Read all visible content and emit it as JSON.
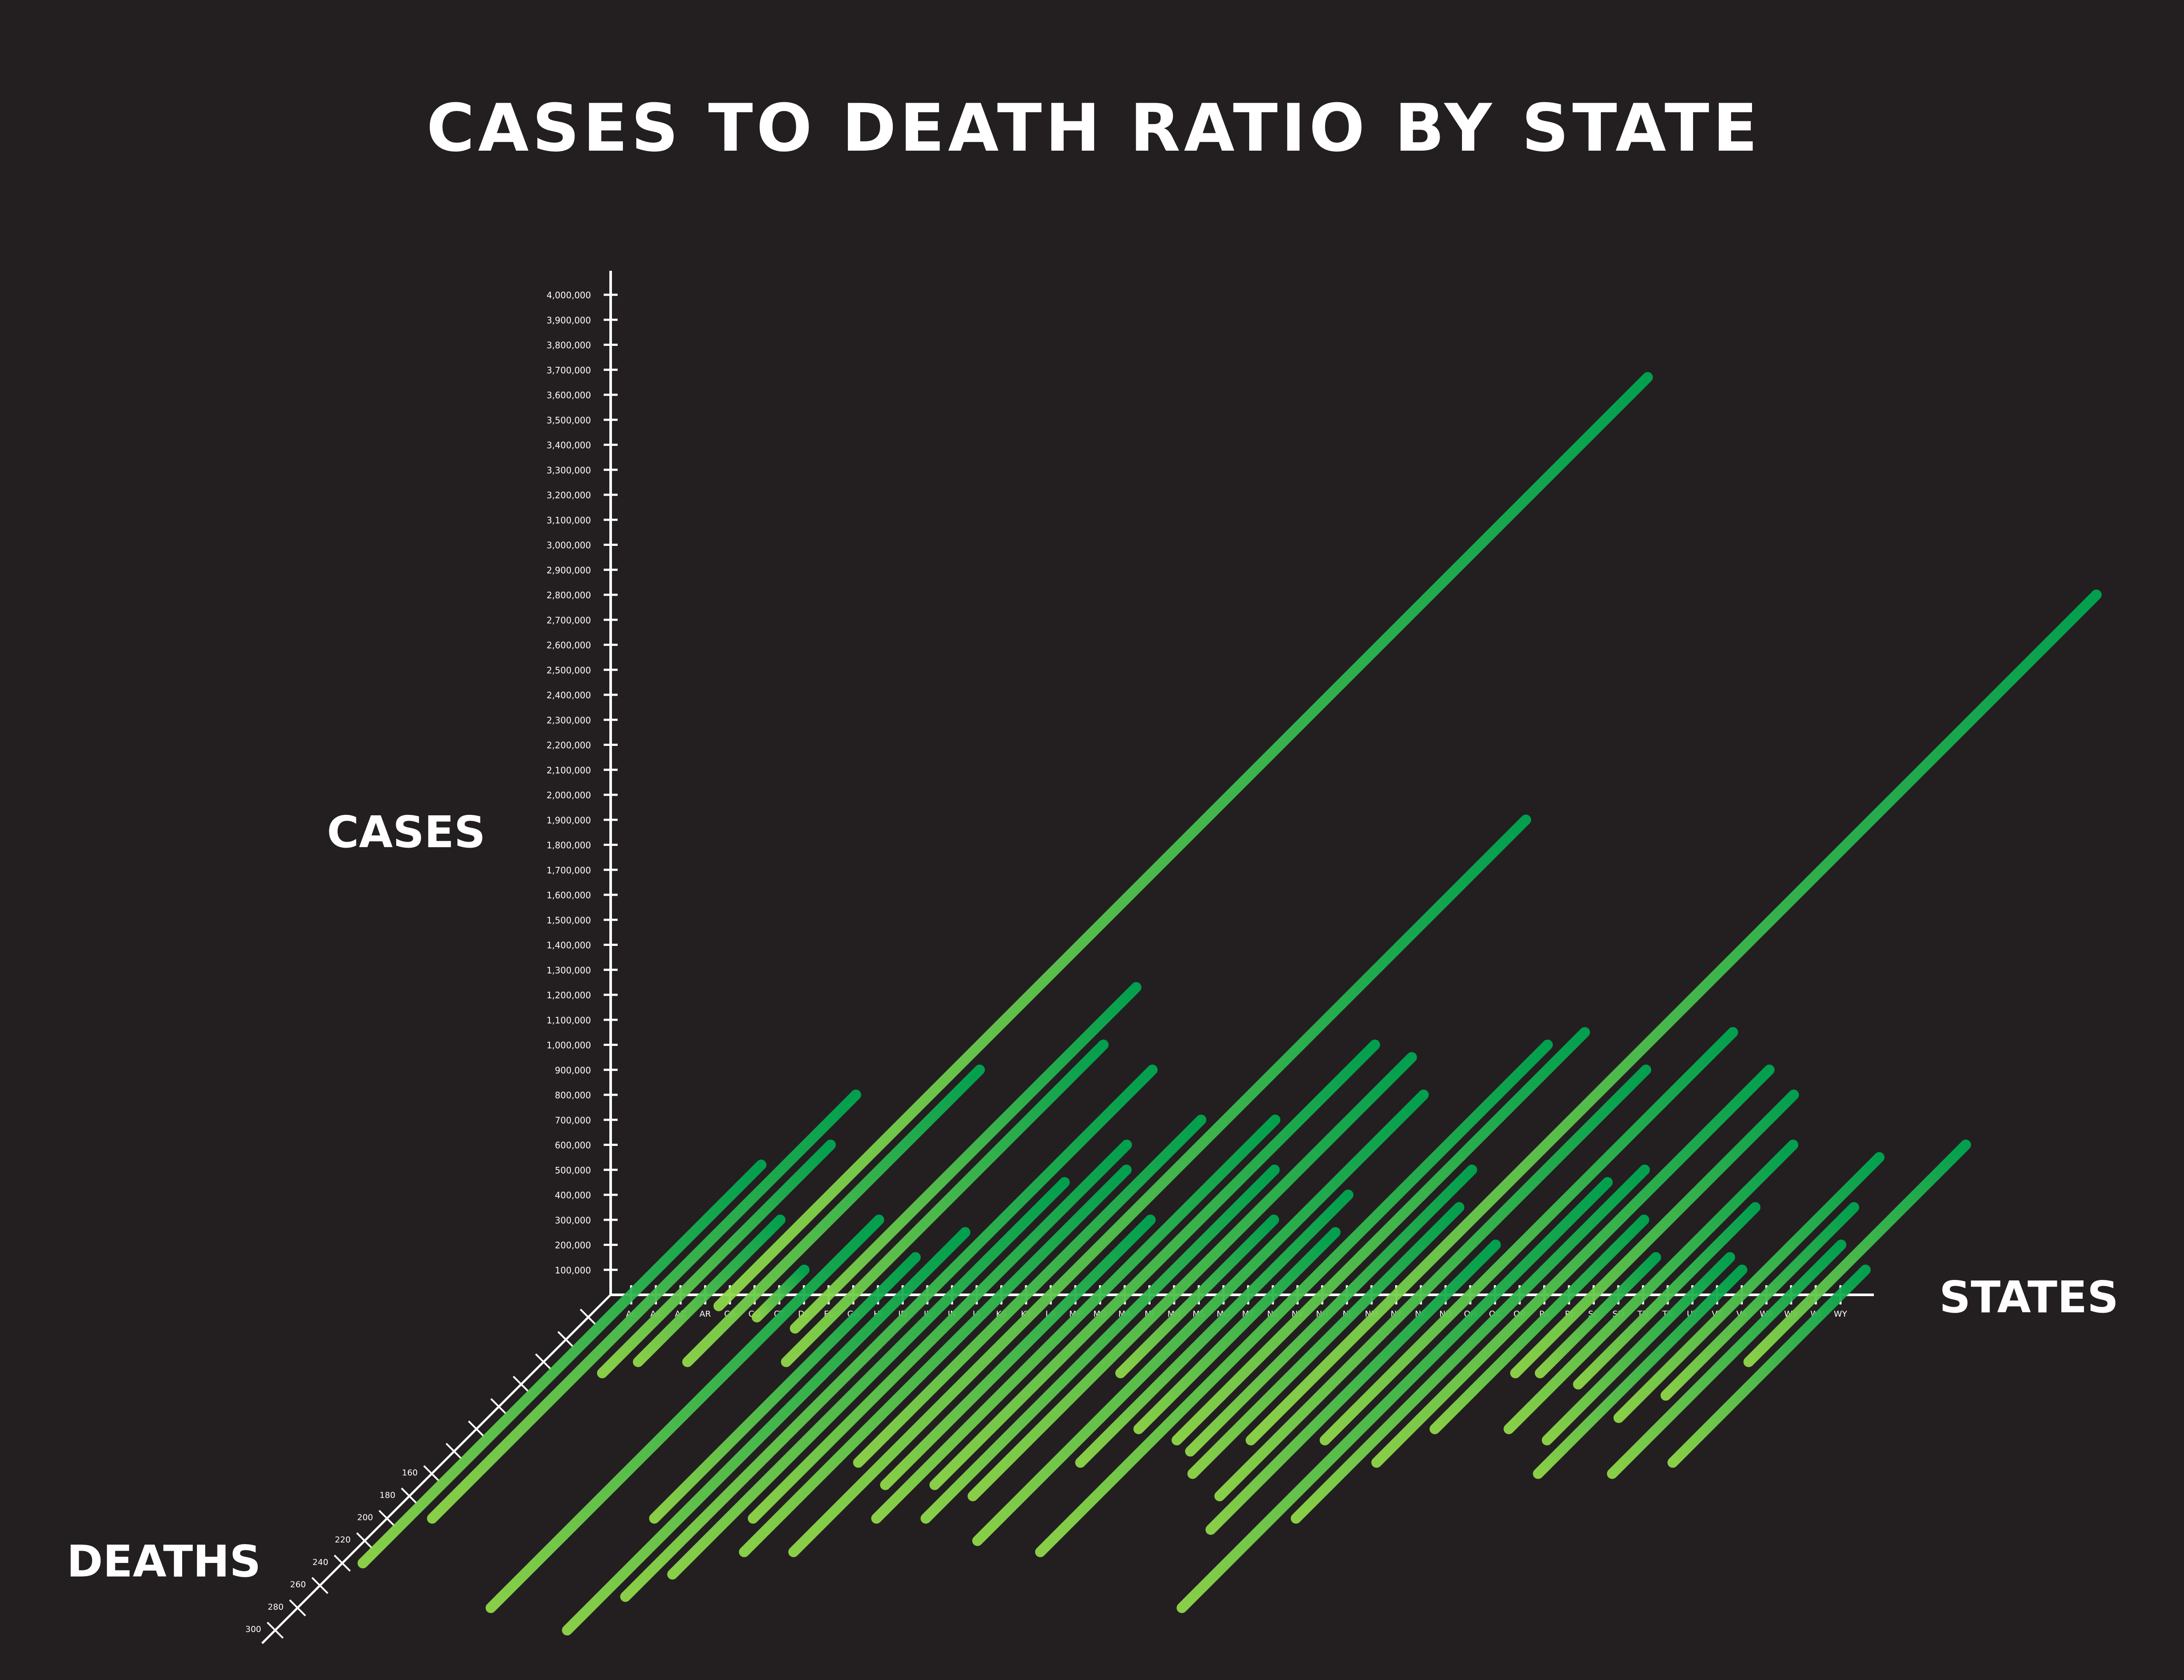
{
  "chart_data": {
    "type": "line",
    "title": "CASES TO DEATH RATIO BY STATE",
    "xlabel": "STATES",
    "ylabel": "CASES",
    "zlabel": "DEATHS",
    "categories": [
      "AL",
      "AK",
      "AZ",
      "AR",
      "CA",
      "CO",
      "CT",
      "DE",
      "FL",
      "GA",
      "HI",
      "ID",
      "IL",
      "IN",
      "IA",
      "KS",
      "KY",
      "LA",
      "ME",
      "MD",
      "MA",
      "MI",
      "MN",
      "MS",
      "MO",
      "MT",
      "NE",
      "NV",
      "NH",
      "NJ",
      "NM",
      "NY",
      "NC",
      "ND",
      "OH",
      "OK",
      "OR",
      "PA",
      "RI",
      "SC",
      "SD",
      "TN",
      "TX",
      "UT",
      "VT",
      "VA",
      "WA",
      "WV",
      "WI",
      "WY"
    ],
    "y_ticks": [
      "100,000",
      "200,000",
      "300,000",
      "400,000",
      "500,000",
      "600,000",
      "700,000",
      "800,000",
      "900,000",
      "1,000,000",
      "1,100,000",
      "1,200,000",
      "1,300,000",
      "1,400,000",
      "1,500,000",
      "1,600,000",
      "1,700,000",
      "1,800,000",
      "1,900,000",
      "2,000,000",
      "2,100,000",
      "2,200,000",
      "2,300,000",
      "2,400,000",
      "2,500,000",
      "2,600,000",
      "2,700,000",
      "2,800,000",
      "2,900,000",
      "3,000,000",
      "3,100,000",
      "3,200,000",
      "3,300,000",
      "3,400,000",
      "3,500,000",
      "3,600,000",
      "3,700,000",
      "3,800,000",
      "3,900,000",
      "4,000,000"
    ],
    "ylim": [
      0,
      4000000
    ],
    "z_ticks": [
      "160",
      "180",
      "200",
      "220",
      "240",
      "260",
      "280",
      "300"
    ],
    "zlim": [
      0,
      300
    ],
    "grid": false,
    "legend": "none",
    "colors": {
      "background": "#231f20",
      "axis": "#ffffff",
      "series_light": "#8fd84a",
      "series_dark": "#00a651"
    },
    "series": [
      {
        "x": "AL",
        "cases": 520000,
        "deaths": 240
      },
      {
        "x": "AK",
        "cases": 800000,
        "deaths": 200
      },
      {
        "x": "AZ",
        "cases": 600000,
        "deaths": 70
      },
      {
        "x": "AR",
        "cases": 300000,
        "deaths": 60
      },
      {
        "x": "CA",
        "cases": 3670000,
        "deaths": 10
      },
      {
        "x": "CO",
        "cases": 900000,
        "deaths": 60
      },
      {
        "x": "CT",
        "cases": 100000,
        "deaths": 20
      },
      {
        "x": "DE",
        "cases": 300000,
        "deaths": 280
      },
      {
        "x": "FL",
        "cases": 1230000,
        "deaths": 30
      },
      {
        "x": "GA",
        "cases": 1000000,
        "deaths": 60
      },
      {
        "x": "HI",
        "cases": 150000,
        "deaths": 200
      },
      {
        "x": "ID",
        "cases": 250000,
        "deaths": 300
      },
      {
        "x": "IL",
        "cases": 900000,
        "deaths": 270
      },
      {
        "x": "IN",
        "cases": 450000,
        "deaths": 250
      },
      {
        "x": "IA",
        "cases": 600000,
        "deaths": 200
      },
      {
        "x": "KS",
        "cases": 500000,
        "deaths": 230
      },
      {
        "x": "KY",
        "cases": 700000,
        "deaths": 150
      },
      {
        "x": "LA",
        "cases": 1900000,
        "deaths": 230
      },
      {
        "x": "ME",
        "cases": 300000,
        "deaths": 170
      },
      {
        "x": "MD",
        "cases": 700000,
        "deaths": 200
      },
      {
        "x": "MA",
        "cases": 1000000,
        "deaths": 170
      },
      {
        "x": "MI",
        "cases": 500000,
        "deaths": 200
      },
      {
        "x": "MN",
        "cases": 950000,
        "deaths": 180
      },
      {
        "x": "MS",
        "cases": 300000,
        "deaths": 70
      },
      {
        "x": "MO",
        "cases": 800000,
        "deaths": 220
      },
      {
        "x": "MT",
        "cases": 400000,
        "deaths": 150
      },
      {
        "x": "NE",
        "cases": 250000,
        "deaths": 120
      },
      {
        "x": "NV",
        "cases": 1000000,
        "deaths": 230
      },
      {
        "x": "NH",
        "cases": 1050000,
        "deaths": 130
      },
      {
        "x": "NJ",
        "cases": 500000,
        "deaths": 140
      },
      {
        "x": "NM",
        "cases": 350000,
        "deaths": 160
      },
      {
        "x": "NY",
        "cases": 2800000,
        "deaths": 130
      },
      {
        "x": "NC",
        "cases": 900000,
        "deaths": 180
      },
      {
        "x": "ND",
        "cases": 200000,
        "deaths": 210
      },
      {
        "x": "OH",
        "cases": 1050000,
        "deaths": 130
      },
      {
        "x": "OK",
        "cases": 450000,
        "deaths": 280
      },
      {
        "x": "OR",
        "cases": 500000,
        "deaths": 200
      },
      {
        "x": "PA",
        "cases": 900000,
        "deaths": 150
      },
      {
        "x": "RI",
        "cases": 300000,
        "deaths": 120
      },
      {
        "x": "SC",
        "cases": 800000,
        "deaths": 70
      },
      {
        "x": "SD",
        "cases": 150000,
        "deaths": 70
      },
      {
        "x": "TN",
        "cases": 600000,
        "deaths": 120
      },
      {
        "x": "TX",
        "cases": 350000,
        "deaths": 80
      },
      {
        "x": "UT",
        "cases": 150000,
        "deaths": 130
      },
      {
        "x": "VT",
        "cases": 100000,
        "deaths": 160
      },
      {
        "x": "VA",
        "cases": 550000,
        "deaths": 110
      },
      {
        "x": "WA",
        "cases": 350000,
        "deaths": 90
      },
      {
        "x": "WV",
        "cases": 200000,
        "deaths": 160
      },
      {
        "x": "WI",
        "cases": 600000,
        "deaths": 60
      },
      {
        "x": "WY",
        "cases": 100000,
        "deaths": 150
      }
    ]
  }
}
